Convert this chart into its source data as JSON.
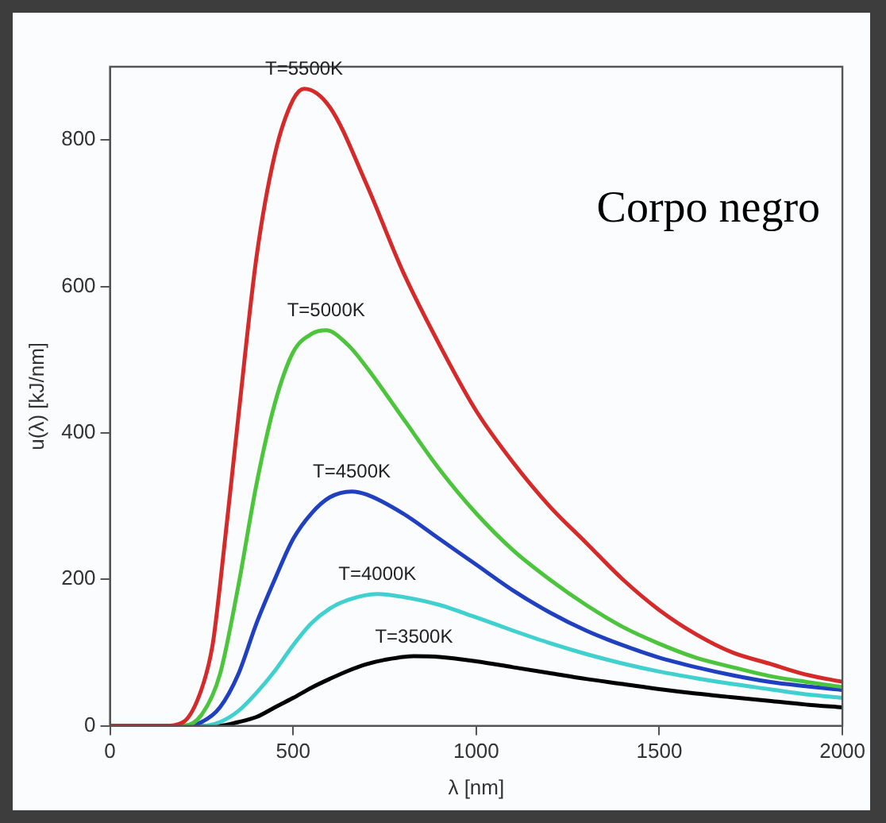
{
  "chart_data": {
    "type": "line",
    "xlabel": "λ [nm]",
    "ylabel": "u(λ) [kJ/nm]",
    "xlim": [
      0,
      2000
    ],
    "xticks": [
      0,
      500,
      1000,
      1500,
      2000
    ],
    "ylim": [
      0,
      900
    ],
    "yticks": [
      0,
      200,
      400,
      600,
      800
    ],
    "grid": false,
    "legend": false,
    "marker": "none",
    "line_style": "solid",
    "series": [
      {
        "name": "T=5500K",
        "color": "#d42a2a",
        "x": [
          0,
          150,
          200,
          250,
          280,
          300,
          350,
          400,
          450,
          500,
          530,
          600,
          700,
          800,
          900,
          1000,
          1100,
          1200,
          1300,
          1400,
          1500,
          1600,
          1700,
          1800,
          1900,
          2000
        ],
        "values": [
          0,
          0,
          5,
          50,
          110,
          190,
          420,
          640,
          780,
          855,
          870,
          845,
          740,
          620,
          520,
          430,
          360,
          300,
          250,
          200,
          158,
          125,
          100,
          85,
          70,
          60
        ]
      },
      {
        "name": "T=5000K",
        "color": "#4cc43c",
        "x": [
          0,
          200,
          250,
          300,
          350,
          400,
          450,
          500,
          550,
          590,
          650,
          700,
          800,
          900,
          1000,
          1100,
          1200,
          1300,
          1400,
          1500,
          1600,
          1700,
          1800,
          1900,
          2000
        ],
        "values": [
          0,
          0,
          15,
          70,
          190,
          330,
          440,
          510,
          535,
          540,
          520,
          490,
          420,
          350,
          290,
          240,
          200,
          165,
          135,
          112,
          93,
          80,
          68,
          60,
          53
        ]
      },
      {
        "name": "T=4500K",
        "color": "#2040c0",
        "x": [
          0,
          200,
          250,
          300,
          350,
          400,
          450,
          500,
          550,
          600,
          660,
          700,
          800,
          900,
          1000,
          1100,
          1200,
          1300,
          1400,
          1500,
          1600,
          1700,
          1800,
          1900,
          2000
        ],
        "values": [
          0,
          0,
          5,
          25,
          70,
          140,
          200,
          255,
          290,
          312,
          320,
          316,
          290,
          255,
          220,
          185,
          155,
          130,
          110,
          93,
          80,
          69,
          60,
          54,
          49
        ]
      },
      {
        "name": "T=4000K",
        "color": "#40d0d0",
        "x": [
          0,
          250,
          300,
          350,
          400,
          450,
          500,
          550,
          600,
          650,
          730,
          800,
          900,
          1000,
          1100,
          1200,
          1300,
          1400,
          1500,
          1600,
          1700,
          1800,
          1900,
          2000
        ],
        "values": [
          0,
          0,
          5,
          20,
          45,
          75,
          110,
          140,
          160,
          172,
          180,
          176,
          165,
          148,
          130,
          113,
          98,
          85,
          74,
          65,
          57,
          50,
          43,
          38
        ]
      },
      {
        "name": "T=3500K",
        "color": "#000000",
        "x": [
          0,
          300,
          350,
          400,
          450,
          500,
          550,
          600,
          650,
          700,
          750,
          830,
          900,
          1000,
          1100,
          1200,
          1300,
          1400,
          1500,
          1600,
          1700,
          1800,
          1900,
          2000
        ],
        "values": [
          0,
          0,
          5,
          12,
          25,
          38,
          52,
          64,
          75,
          84,
          90,
          95,
          94,
          88,
          80,
          72,
          64,
          57,
          50,
          44,
          39,
          34,
          29,
          25
        ]
      }
    ],
    "annotations": [
      "Corpo negro"
    ]
  }
}
